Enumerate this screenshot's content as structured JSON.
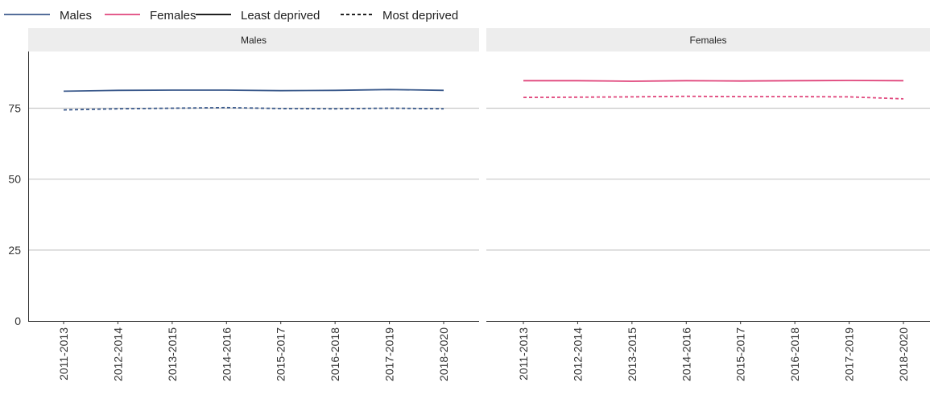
{
  "chart_data": {
    "type": "line",
    "legend": {
      "position": "top-left",
      "entries": [
        {
          "label": "Males",
          "color": "#3B5A8C",
          "style": "solid"
        },
        {
          "label": "Females",
          "color": "#E0457B",
          "style": "solid"
        },
        {
          "label": "Least deprived",
          "color": "#000000",
          "style": "solid"
        },
        {
          "label": "Most deprived",
          "color": "#000000",
          "style": "dashed"
        }
      ]
    },
    "categories": [
      "2011-2013",
      "2012-2014",
      "2013-2015",
      "2014-2016",
      "2015-2017",
      "2016-2018",
      "2017-2019",
      "2018-2020"
    ],
    "ylim": [
      0,
      95
    ],
    "yticks": [
      0,
      25,
      50,
      75
    ],
    "grid": "horizontal",
    "panels": [
      {
        "title": "Males",
        "color": "#3B5A8C",
        "series": [
          {
            "group": "Least deprived",
            "style": "solid",
            "values": [
              81.0,
              81.3,
              81.4,
              81.4,
              81.2,
              81.3,
              81.6,
              81.3
            ]
          },
          {
            "group": "Most deprived",
            "style": "dashed",
            "values": [
              74.4,
              74.8,
              75.0,
              75.2,
              74.9,
              74.8,
              75.0,
              74.8
            ]
          }
        ]
      },
      {
        "title": "Females",
        "color": "#E0457B",
        "series": [
          {
            "group": "Least deprived",
            "style": "solid",
            "values": [
              84.7,
              84.7,
              84.5,
              84.7,
              84.6,
              84.7,
              84.8,
              84.7
            ]
          },
          {
            "group": "Most deprived",
            "style": "dashed",
            "values": [
              78.8,
              78.9,
              79.0,
              79.2,
              79.1,
              79.1,
              79.0,
              78.3
            ]
          }
        ]
      }
    ]
  }
}
